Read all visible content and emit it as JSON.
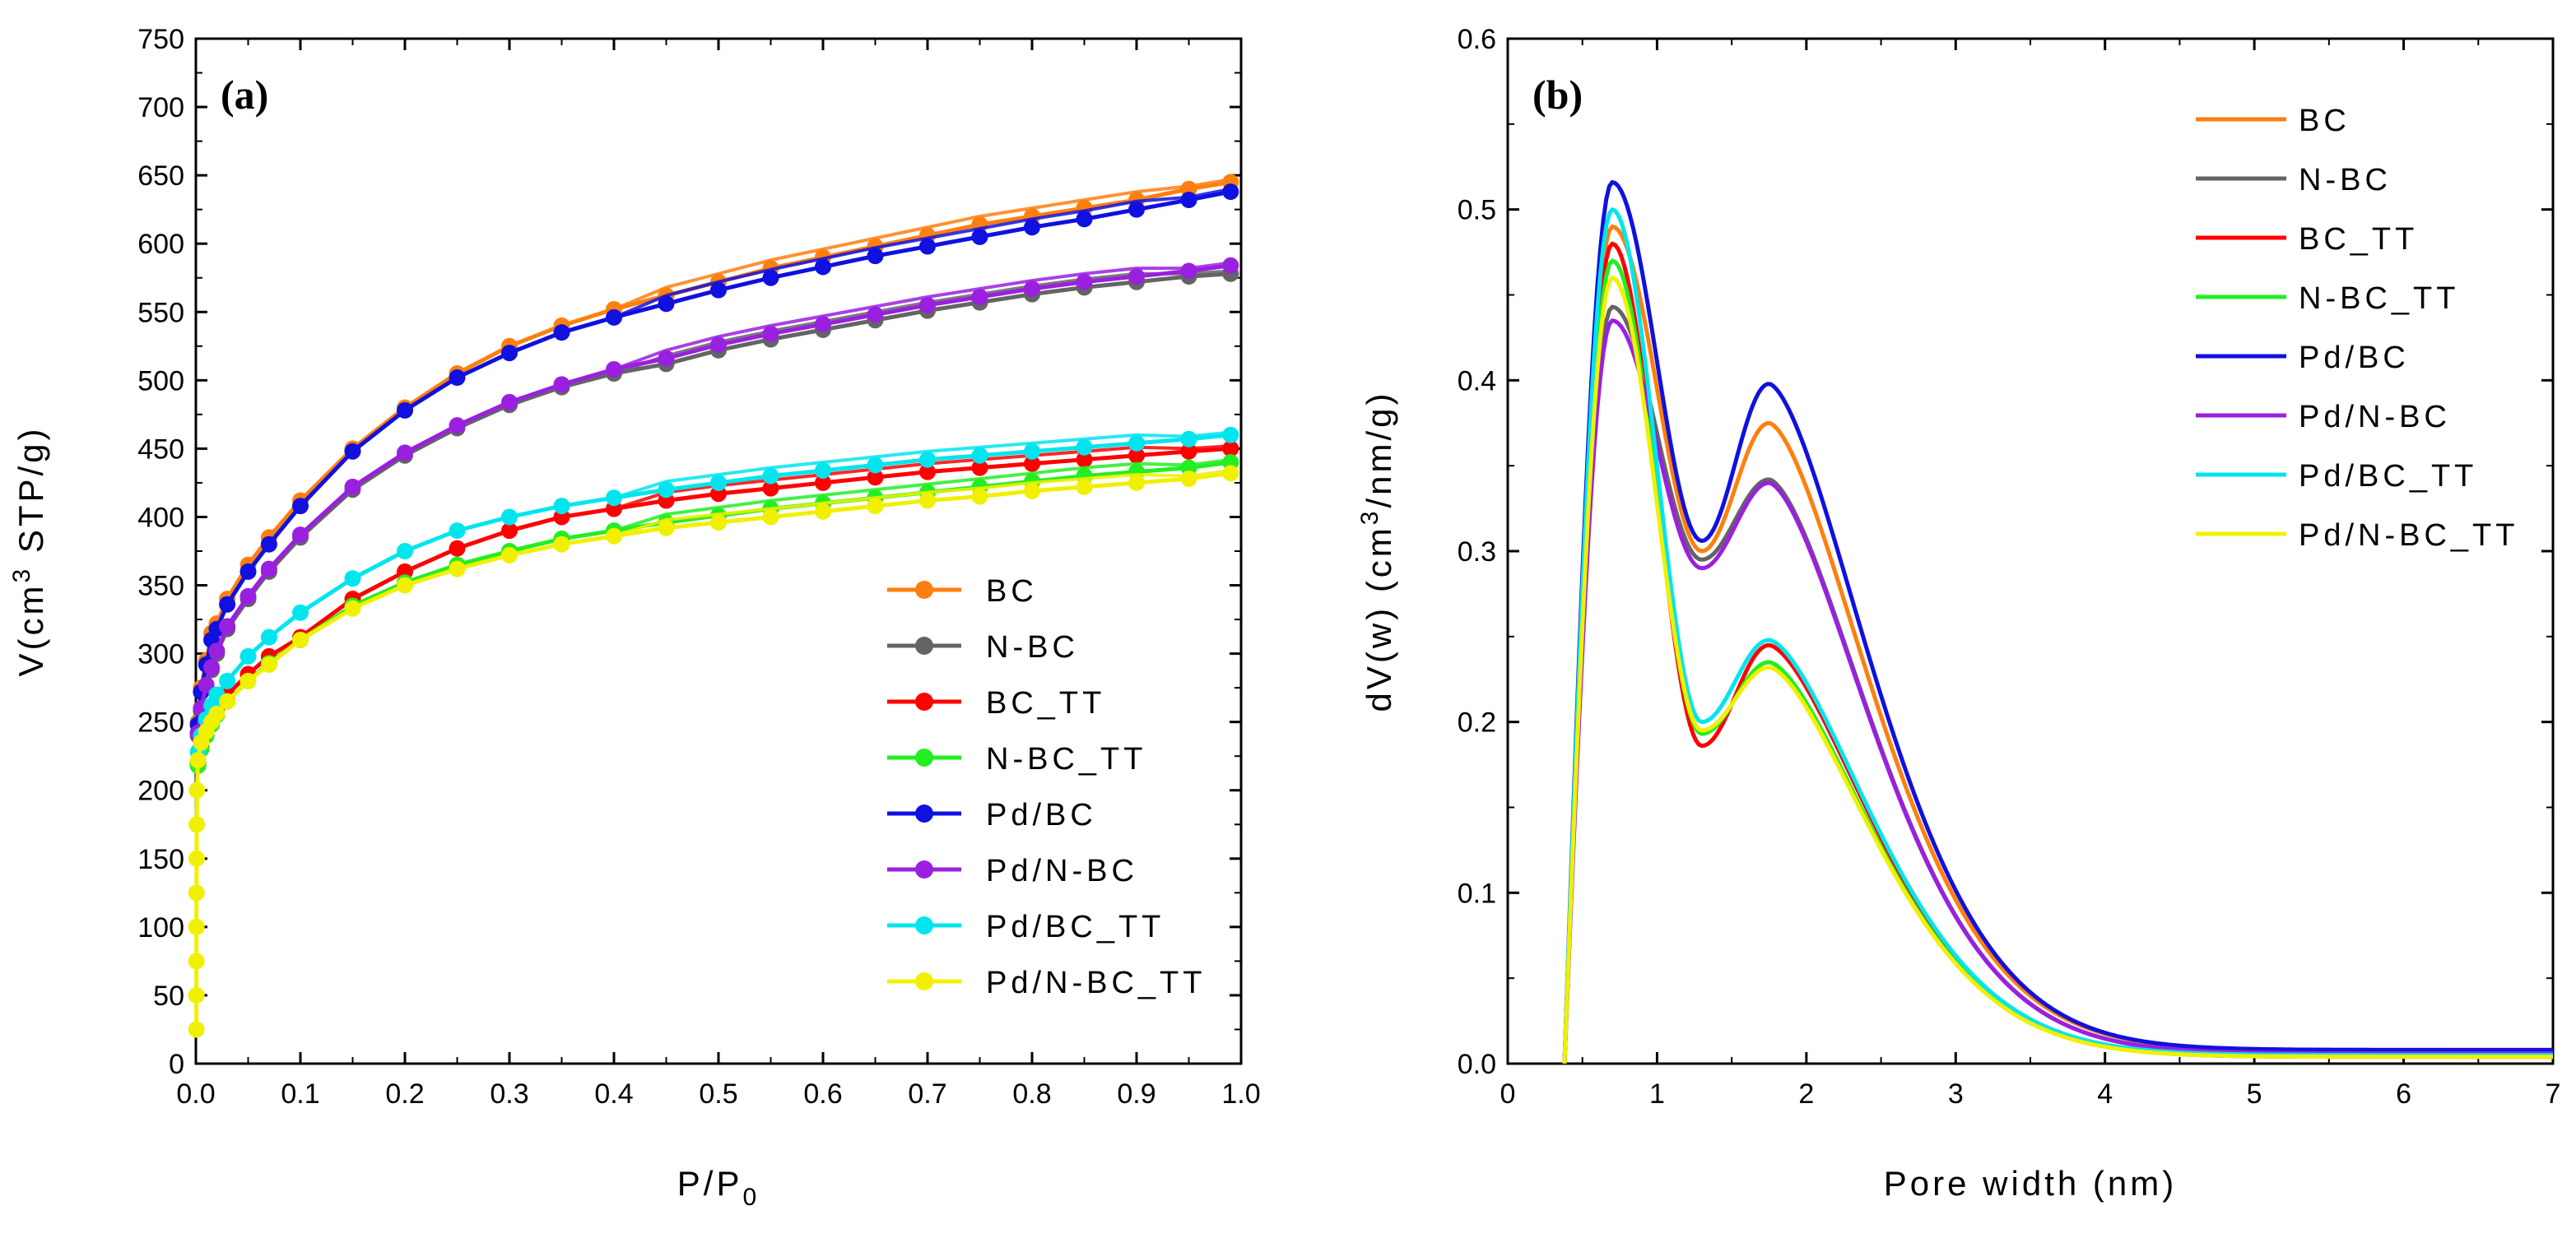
{
  "chart_data": [
    {
      "type": "line",
      "panel_label": "(a)",
      "xlabel": "P/P",
      "xlabel_sub": "0",
      "ylabel": "V(cm",
      "ylabel_sup": "3",
      "ylabel_tail": " STP/g)",
      "xlim": [
        0,
        1.0
      ],
      "ylim": [
        0,
        750
      ],
      "xticks": [
        "0.0",
        "0.1",
        "0.2",
        "0.3",
        "0.4",
        "0.5",
        "0.6",
        "0.7",
        "0.8",
        "0.9",
        "1.0"
      ],
      "yticks": [
        "0",
        "50",
        "100",
        "150",
        "200",
        "250",
        "300",
        "350",
        "400",
        "450",
        "500",
        "550",
        "600",
        "650",
        "700",
        "750"
      ],
      "legend_position": "lower-right",
      "series": [
        {
          "name": "BC",
          "color": "#FF7F0E",
          "x": [
            0.002,
            0.005,
            0.01,
            0.015,
            0.02,
            0.03,
            0.05,
            0.07,
            0.1,
            0.15,
            0.2,
            0.25,
            0.3,
            0.35,
            0.4,
            0.45,
            0.5,
            0.55,
            0.6,
            0.65,
            0.7,
            0.75,
            0.8,
            0.85,
            0.9,
            0.95,
            0.99
          ],
          "y": [
            250,
            275,
            295,
            315,
            322,
            340,
            365,
            385,
            412,
            450,
            480,
            505,
            525,
            540,
            552,
            562,
            572,
            582,
            590,
            598,
            606,
            614,
            620,
            626,
            632,
            640,
            645
          ]
        },
        {
          "name": "N-BC",
          "color": "#646464",
          "x": [
            0.002,
            0.005,
            0.01,
            0.015,
            0.02,
            0.03,
            0.05,
            0.07,
            0.1,
            0.15,
            0.2,
            0.25,
            0.3,
            0.35,
            0.4,
            0.45,
            0.5,
            0.55,
            0.6,
            0.65,
            0.7,
            0.75,
            0.8,
            0.85,
            0.9,
            0.95,
            0.99
          ],
          "y": [
            240,
            258,
            275,
            288,
            300,
            318,
            340,
            360,
            385,
            420,
            445,
            465,
            482,
            495,
            505,
            512,
            522,
            530,
            537,
            544,
            551,
            557,
            563,
            568,
            572,
            576,
            578
          ]
        },
        {
          "name": "BC_TT",
          "color": "#FF0000",
          "x": [
            0.002,
            0.005,
            0.01,
            0.015,
            0.02,
            0.03,
            0.05,
            0.07,
            0.1,
            0.15,
            0.2,
            0.25,
            0.3,
            0.35,
            0.4,
            0.45,
            0.5,
            0.55,
            0.6,
            0.65,
            0.7,
            0.75,
            0.8,
            0.85,
            0.9,
            0.95,
            0.99
          ],
          "y": [
            220,
            232,
            244,
            252,
            260,
            270,
            285,
            298,
            312,
            340,
            360,
            377,
            390,
            400,
            406,
            412,
            417,
            421,
            425,
            429,
            433,
            436,
            439,
            442,
            445,
            448,
            450
          ]
        },
        {
          "name": "N-BC_TT",
          "color": "#22EE22",
          "x": [
            0.002,
            0.005,
            0.01,
            0.015,
            0.02,
            0.03,
            0.05,
            0.07,
            0.1,
            0.15,
            0.2,
            0.25,
            0.3,
            0.35,
            0.4,
            0.45,
            0.5,
            0.55,
            0.6,
            0.65,
            0.7,
            0.75,
            0.8,
            0.85,
            0.9,
            0.95,
            0.99
          ],
          "y": [
            218,
            230,
            240,
            248,
            255,
            265,
            280,
            293,
            310,
            335,
            352,
            365,
            375,
            384,
            390,
            396,
            401,
            406,
            410,
            414,
            418,
            422,
            426,
            430,
            433,
            436,
            440
          ]
        },
        {
          "name": "Pd/BC",
          "color": "#1010E0",
          "x": [
            0.002,
            0.005,
            0.01,
            0.015,
            0.02,
            0.03,
            0.05,
            0.07,
            0.1,
            0.15,
            0.2,
            0.25,
            0.3,
            0.35,
            0.4,
            0.45,
            0.5,
            0.55,
            0.6,
            0.65,
            0.7,
            0.75,
            0.8,
            0.85,
            0.9,
            0.95,
            0.99
          ],
          "y": [
            248,
            272,
            292,
            310,
            318,
            336,
            360,
            380,
            408,
            448,
            478,
            502,
            520,
            535,
            546,
            556,
            566,
            575,
            583,
            591,
            598,
            605,
            612,
            618,
            625,
            632,
            638
          ]
        },
        {
          "name": "Pd/N-BC",
          "color": "#9A20E0",
          "x": [
            0.002,
            0.005,
            0.01,
            0.015,
            0.02,
            0.03,
            0.05,
            0.07,
            0.1,
            0.15,
            0.2,
            0.25,
            0.3,
            0.35,
            0.4,
            0.45,
            0.5,
            0.55,
            0.6,
            0.65,
            0.7,
            0.75,
            0.8,
            0.85,
            0.9,
            0.95,
            0.99
          ],
          "y": [
            242,
            260,
            277,
            290,
            302,
            320,
            342,
            362,
            387,
            422,
            447,
            467,
            484,
            497,
            508,
            516,
            526,
            534,
            541,
            548,
            555,
            561,
            567,
            572,
            576,
            580,
            584
          ]
        },
        {
          "name": "Pd/BC_TT",
          "color": "#00E5EE",
          "x": [
            0.002,
            0.005,
            0.01,
            0.015,
            0.02,
            0.03,
            0.05,
            0.07,
            0.1,
            0.15,
            0.2,
            0.25,
            0.3,
            0.35,
            0.4,
            0.45,
            0.5,
            0.55,
            0.6,
            0.65,
            0.7,
            0.75,
            0.8,
            0.85,
            0.9,
            0.95,
            0.99
          ],
          "y": [
            228,
            240,
            252,
            262,
            270,
            280,
            298,
            312,
            330,
            355,
            375,
            390,
            400,
            408,
            414,
            420,
            425,
            430,
            434,
            438,
            442,
            445,
            448,
            451,
            454,
            457,
            460
          ]
        },
        {
          "name": "Pd/N-BC_TT",
          "color": "#F0F000",
          "x": [
            0.0005,
            0.0005,
            0.0005,
            0.0005,
            0.0006,
            0.0007,
            0.0008,
            0.001,
            0.002,
            0.005,
            0.01,
            0.015,
            0.02,
            0.03,
            0.05,
            0.07,
            0.1,
            0.15,
            0.2,
            0.25,
            0.3,
            0.35,
            0.4,
            0.45,
            0.5,
            0.55,
            0.6,
            0.65,
            0.7,
            0.75,
            0.8,
            0.85,
            0.9,
            0.95,
            0.99
          ],
          "y": [
            25,
            50,
            75,
            100,
            125,
            150,
            175,
            200,
            222,
            235,
            243,
            250,
            256,
            265,
            280,
            292,
            310,
            333,
            350,
            362,
            372,
            380,
            386,
            392,
            396,
            400,
            404,
            408,
            412,
            415,
            419,
            422,
            425,
            428,
            432
          ]
        }
      ]
    },
    {
      "type": "line",
      "panel_label": "(b)",
      "xlabel": "Pore width (nm)",
      "ylabel": "dV(w) (cm",
      "ylabel_sup": "3",
      "ylabel_tail": "/nm/g)",
      "xlim": [
        0,
        7
      ],
      "ylim": [
        0,
        0.6
      ],
      "xticks": [
        "0",
        "1",
        "2",
        "3",
        "4",
        "5",
        "6",
        "7"
      ],
      "yticks": [
        "0.0",
        "0.1",
        "0.2",
        "0.3",
        "0.4",
        "0.5",
        "0.6"
      ],
      "legend_position": "top-right",
      "series": [
        {
          "name": "BC",
          "color": "#FF7F0E",
          "peak1": 0.49,
          "trough": 0.3,
          "peak2": 0.375,
          "tail_at_7": 0.008
        },
        {
          "name": "N-BC",
          "color": "#646464",
          "peak1": 0.443,
          "trough": 0.295,
          "peak2": 0.342,
          "tail_at_7": 0.006
        },
        {
          "name": "BC_TT",
          "color": "#FF0000",
          "peak1": 0.48,
          "trough": 0.186,
          "peak2": 0.245,
          "tail_at_7": 0.004
        },
        {
          "name": "N-BC_TT",
          "color": "#22EE22",
          "peak1": 0.47,
          "trough": 0.193,
          "peak2": 0.235,
          "tail_at_7": 0.004
        },
        {
          "name": "Pd/BC",
          "color": "#1010E0",
          "peak1": 0.516,
          "trough": 0.306,
          "peak2": 0.398,
          "tail_at_7": 0.008
        },
        {
          "name": "Pd/N-BC",
          "color": "#9A20E0",
          "peak1": 0.435,
          "trough": 0.29,
          "peak2": 0.34,
          "tail_at_7": 0.006
        },
        {
          "name": "Pd/BC_TT",
          "color": "#00E5EE",
          "peak1": 0.5,
          "trough": 0.2,
          "peak2": 0.248,
          "tail_at_7": 0.005
        },
        {
          "name": "Pd/N-BC_TT",
          "color": "#F0F000",
          "peak1": 0.46,
          "trough": 0.195,
          "peak2": 0.232,
          "tail_at_7": 0.004
        }
      ]
    }
  ]
}
